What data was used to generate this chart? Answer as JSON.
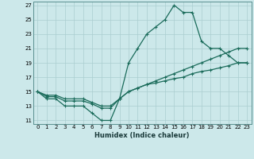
{
  "xlabel": "Humidex (Indice chaleur)",
  "background_color": "#cce8ea",
  "grid_color": "#aacdd0",
  "line_color": "#1a6b5a",
  "xlim": [
    -0.5,
    23.5
  ],
  "ylim": [
    10.5,
    27.5
  ],
  "xticks": [
    0,
    1,
    2,
    3,
    4,
    5,
    6,
    7,
    8,
    9,
    10,
    11,
    12,
    13,
    14,
    15,
    16,
    17,
    18,
    19,
    20,
    21,
    22,
    23
  ],
  "yticks": [
    11,
    13,
    15,
    17,
    19,
    21,
    23,
    25,
    27
  ],
  "line1_x": [
    0,
    1,
    2,
    3,
    4,
    5,
    6,
    7,
    8,
    9,
    10,
    11,
    12,
    13,
    14,
    15,
    16,
    17,
    18,
    19,
    20,
    21,
    22,
    23
  ],
  "line1_y": [
    15,
    14,
    14,
    13,
    13,
    13,
    12,
    11,
    11,
    14,
    19,
    21,
    23,
    24,
    25,
    27,
    26,
    26,
    22,
    21,
    21,
    20,
    19,
    19
  ],
  "line2_x": [
    0,
    1,
    2,
    3,
    4,
    5,
    6,
    7,
    8,
    9,
    10,
    11,
    12,
    13,
    14,
    15,
    16,
    17,
    18,
    19,
    20,
    21,
    22,
    23
  ],
  "line2_y": [
    15,
    14.5,
    14.5,
    14,
    14,
    14,
    13.5,
    13,
    13,
    14,
    15,
    15.5,
    16,
    16.5,
    17,
    17.5,
    18,
    18.5,
    19,
    19.5,
    20,
    20.5,
    21,
    21
  ],
  "line3_x": [
    0,
    1,
    2,
    3,
    4,
    5,
    6,
    7,
    8,
    9,
    10,
    11,
    12,
    13,
    14,
    15,
    16,
    17,
    18,
    19,
    20,
    21,
    22,
    23
  ],
  "line3_y": [
    15,
    14.3,
    14.3,
    13.7,
    13.7,
    13.7,
    13.3,
    12.7,
    12.7,
    14,
    15,
    15.5,
    16,
    16.2,
    16.5,
    16.8,
    17,
    17.5,
    17.8,
    18,
    18.3,
    18.6,
    19,
    19
  ],
  "xlabel_fontsize": 6,
  "tick_fontsize": 5
}
